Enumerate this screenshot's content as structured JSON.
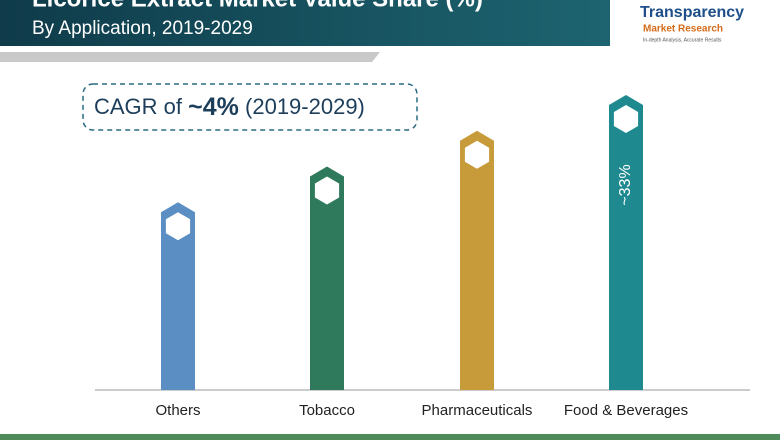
{
  "chart_data": {
    "type": "bar",
    "title": "Licorice Extract Market Value Share (%)",
    "subtitle": "By Application, 2019-2029",
    "annotation": {
      "prefix": "CAGR of",
      "value": "~4%",
      "period": "(2019-2029)"
    },
    "categories": [
      "Others",
      "Tobacco",
      "Pharmaceuticals",
      "Food & Beverages"
    ],
    "values": [
      21,
      25,
      29,
      33
    ],
    "value_labels": [
      null,
      null,
      null,
      "~33%"
    ],
    "colors": [
      "#5b8fc4",
      "#2f7a5c",
      "#c79a3a",
      "#1e8a8f"
    ]
  },
  "logo": {
    "name": "Transparency",
    "name2": "Market Research",
    "tagline": "In-depth Analysis, Accurate Results"
  }
}
